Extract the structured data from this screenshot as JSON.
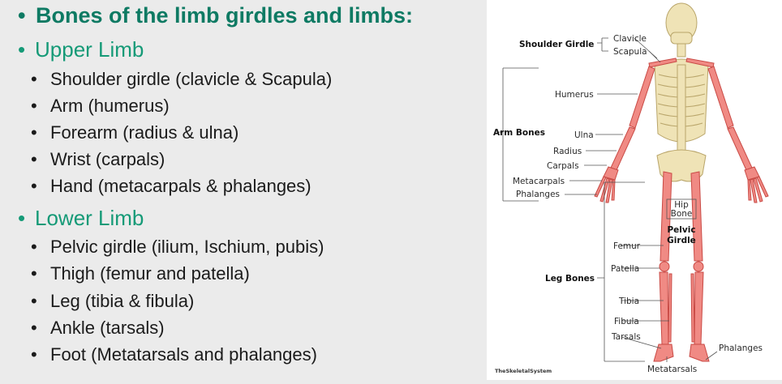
{
  "slide": {
    "title": "Bones of the limb girdles and limbs:",
    "upper": {
      "heading": "Upper Limb",
      "items": [
        "Shoulder girdle (clavicle & Scapula)",
        "Arm (humerus)",
        "Forearm (radius & ulna)",
        "Wrist (carpals)",
        "Hand (metacarpals & phalanges)"
      ]
    },
    "lower": {
      "heading": "Lower Limb",
      "items": [
        "Pelvic girdle (ilium, Ischium, pubis)",
        "Thigh (femur and patella)",
        "Leg (tibia & fibula)",
        "Ankle (tarsals)",
        "Foot (Metatarsals and phalanges)"
      ]
    },
    "bullet": "•",
    "colors": {
      "title": "#0e7a63",
      "heading": "#159a77",
      "bone": "#f08a84",
      "axial": "#efe3b6"
    }
  },
  "figure": {
    "shoulder_girdle": "Shoulder Girdle",
    "clavicle": "Clavicle",
    "scapula": "Scapula",
    "humerus": "Humerus",
    "arm_bones": "Arm Bones",
    "ulna": "Ulna",
    "radius": "Radius",
    "carpals": "Carpals",
    "metacarpals": "Metacarpals",
    "phalanges_hand": "Phalanges",
    "hip_1": "Hip",
    "hip_2": "Bone",
    "pelvic_1": "Pelvic",
    "pelvic_2": "Girdle",
    "femur": "Femur",
    "patella": "Patella",
    "leg_bones": "Leg Bones",
    "tibia": "Tibia",
    "fibula": "Fibula",
    "tarsals": "Tarsals",
    "metatarsals": "Metatarsals",
    "phalanges_foot": "Phalanges",
    "credit": "TheSkeletalSystem"
  }
}
